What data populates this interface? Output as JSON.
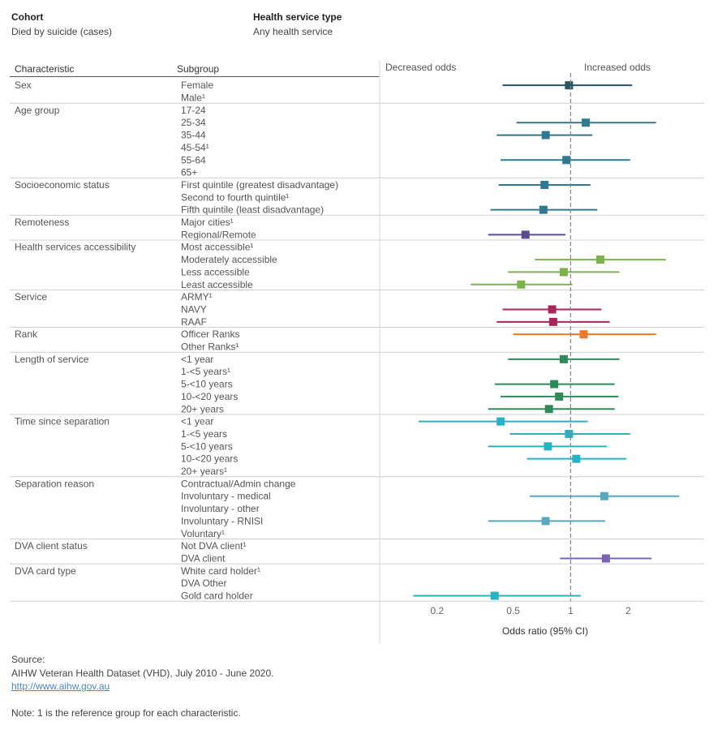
{
  "filters": [
    {
      "label": "Cohort",
      "value": "Died by suicide (cases)"
    },
    {
      "label": "Health service type",
      "value": "Any health service"
    }
  ],
  "table_headers": {
    "characteristic": "Characteristic",
    "subgroup": "Subgroup"
  },
  "direction_labels": {
    "decreased": "Decreased odds",
    "increased": "Increased odds"
  },
  "colors": {
    "Sex": "#2a5464",
    "Age group": "#2f7a92",
    "Socioeconomic status": "#2f7a92",
    "Remoteness": "#5b4d8f",
    "Health services accessibility": "#7bb34a",
    "Service": "#a8265c",
    "Rank": "#f07a2a",
    "Length of service": "#2e8b57",
    "Time since separation": "#27b3c4",
    "Separation reason": "#5aa8c0",
    "DVA client status": "#7a64b4",
    "DVA card type": "#27b3c4"
  },
  "chart_data": {
    "type": "scatter",
    "xlabel": "Odds ratio (95% CI)",
    "x_scale": "log",
    "xlim": [
      0.1,
      5
    ],
    "xticks": [
      0.2,
      0.5,
      1,
      2
    ],
    "reference_line": 1,
    "groups": [
      {
        "characteristic": "Sex",
        "rows": [
          {
            "label": "Female",
            "or": 0.98,
            "lo": 0.44,
            "hi": 2.1
          },
          {
            "label": "Male¹",
            "ref": true
          }
        ]
      },
      {
        "characteristic": "Age group",
        "rows": [
          {
            "label": "17-24"
          },
          {
            "label": "25-34",
            "or": 1.2,
            "lo": 0.52,
            "hi": 2.8
          },
          {
            "label": "35-44",
            "or": 0.74,
            "lo": 0.41,
            "hi": 1.3
          },
          {
            "label": "45-54¹",
            "ref": true
          },
          {
            "label": "55-64",
            "or": 0.95,
            "lo": 0.43,
            "hi": 2.05
          },
          {
            "label": "65+"
          }
        ]
      },
      {
        "characteristic": "Socioeconomic status",
        "rows": [
          {
            "label": "First quintile (greatest disadvantage)",
            "or": 0.73,
            "lo": 0.42,
            "hi": 1.27
          },
          {
            "label": "Second to fourth quintile¹",
            "ref": true
          },
          {
            "label": "Fifth quintile (least disadvantage)",
            "or": 0.72,
            "lo": 0.38,
            "hi": 1.38
          }
        ]
      },
      {
        "characteristic": "Remoteness",
        "rows": [
          {
            "label": "Major cities¹",
            "ref": true
          },
          {
            "label": "Regional/Remote",
            "or": 0.58,
            "lo": 0.37,
            "hi": 0.94
          }
        ]
      },
      {
        "characteristic": "Health services accessibility",
        "rows": [
          {
            "label": "Most accessible¹",
            "ref": true
          },
          {
            "label": "Moderately accessible",
            "or": 1.43,
            "lo": 0.65,
            "hi": 3.15
          },
          {
            "label": "Less accessible",
            "or": 0.92,
            "lo": 0.47,
            "hi": 1.8
          },
          {
            "label": "Least accessible",
            "or": 0.55,
            "lo": 0.3,
            "hi": 1.02
          }
        ]
      },
      {
        "characteristic": "Service",
        "rows": [
          {
            "label": "ARMY¹",
            "ref": true
          },
          {
            "label": "NAVY",
            "or": 0.8,
            "lo": 0.44,
            "hi": 1.45
          },
          {
            "label": "RAAF",
            "or": 0.81,
            "lo": 0.41,
            "hi": 1.6
          }
        ]
      },
      {
        "characteristic": "Rank",
        "rows": [
          {
            "label": "Officer Ranks",
            "or": 1.17,
            "lo": 0.5,
            "hi": 2.8
          },
          {
            "label": "Other Ranks¹",
            "ref": true
          }
        ]
      },
      {
        "characteristic": "Length of service",
        "rows": [
          {
            "label": "<1 year",
            "or": 0.92,
            "lo": 0.47,
            "hi": 1.8
          },
          {
            "label": "1-<5 years¹",
            "ref": true
          },
          {
            "label": "5-<10 years",
            "or": 0.82,
            "lo": 0.4,
            "hi": 1.7
          },
          {
            "label": "10-<20 years",
            "or": 0.87,
            "lo": 0.43,
            "hi": 1.78
          },
          {
            "label": "20+ years",
            "or": 0.77,
            "lo": 0.37,
            "hi": 1.7
          }
        ]
      },
      {
        "characteristic": "Time since separation",
        "rows": [
          {
            "label": "<1 year",
            "or": 0.43,
            "lo": 0.16,
            "hi": 1.23
          },
          {
            "label": "1-<5 years",
            "or": 0.98,
            "lo": 0.48,
            "hi": 2.05
          },
          {
            "label": "5-<10 years",
            "or": 0.76,
            "lo": 0.37,
            "hi": 1.55
          },
          {
            "label": "10-<20 years",
            "or": 1.07,
            "lo": 0.59,
            "hi": 1.96
          },
          {
            "label": "20+ years¹",
            "ref": true
          }
        ]
      },
      {
        "characteristic": "Separation reason",
        "rows": [
          {
            "label": "Contractual/Admin change"
          },
          {
            "label": "Involuntary - medical",
            "or": 1.5,
            "lo": 0.61,
            "hi": 3.7
          },
          {
            "label": "Involuntary - other"
          },
          {
            "label": "Involuntary - RNISI",
            "or": 0.74,
            "lo": 0.37,
            "hi": 1.52
          },
          {
            "label": "Voluntary¹",
            "ref": true
          }
        ]
      },
      {
        "characteristic": "DVA client status",
        "rows": [
          {
            "label": "Not DVA client¹",
            "ref": true
          },
          {
            "label": "DVA client",
            "or": 1.53,
            "lo": 0.88,
            "hi": 2.65
          }
        ]
      },
      {
        "characteristic": "DVA card type",
        "rows": [
          {
            "label": "White card holder¹",
            "ref": true
          },
          {
            "label": "DVA Other"
          },
          {
            "label": "Gold card holder",
            "or": 0.4,
            "lo": 0.15,
            "hi": 1.13
          }
        ]
      }
    ]
  },
  "source": {
    "heading": "Source:",
    "line": "AIHW Veteran Health Dataset (VHD), July 2010 - June 2020.",
    "link": "http://www.aihw.gov.au",
    "note": "Note: 1 is the reference group for each characteristic."
  }
}
